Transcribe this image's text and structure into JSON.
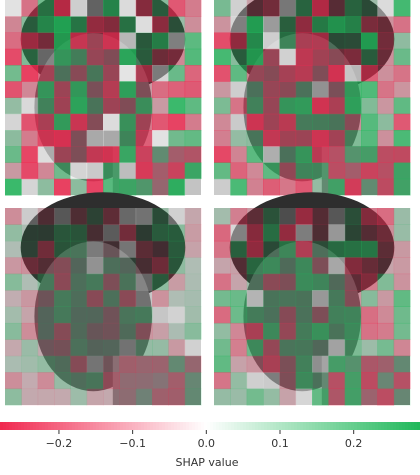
{
  "chart_data": {
    "type": "colorbar",
    "xlabel": "SHAP value",
    "xlim": [
      -0.28,
      0.29
    ],
    "xticks": [
      {
        "value": -0.2,
        "label": "−0.2"
      },
      {
        "value": -0.1,
        "label": "−0.1"
      },
      {
        "value": 0.0,
        "label": "0.0"
      },
      0.1,
      0.2
    ],
    "colormap": [
      "#f0284f",
      "#ffffff",
      "#1fb85a"
    ]
  }
}
